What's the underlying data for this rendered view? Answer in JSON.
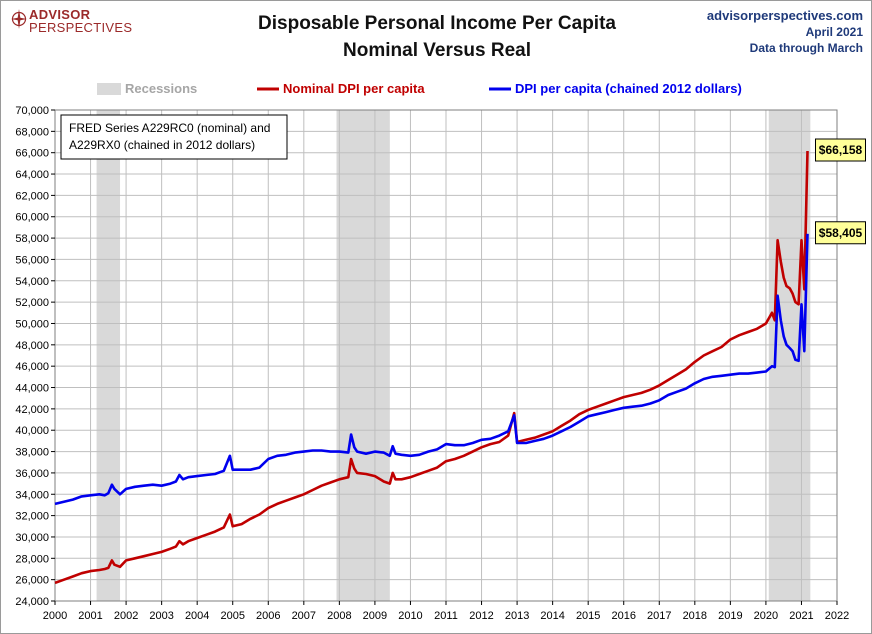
{
  "header": {
    "logo_line1": "ADVISOR",
    "logo_line2": "PERSPECTIVES",
    "title_line1": "Disposable Personal Income Per Capita",
    "title_line2": "Nominal Versus Real",
    "source_site": "advisorperspectives.com",
    "source_date": "April 2021",
    "source_through": "Data through March"
  },
  "annotation": {
    "line1": "FRED Series A229RC0 (nominal) and",
    "line2": "A229RX0 (chained in 2012 dollars)"
  },
  "colors": {
    "nominal": "#c00000",
    "real": "#0000ee",
    "recession": "#d9d9d9",
    "grid": "#bfbfbf",
    "callout_fill": "#ffff99"
  },
  "chart_data": {
    "type": "line",
    "title": "Disposable Personal Income Per Capita Nominal Versus Real",
    "x_ticks": [
      "2000",
      "2001",
      "2002",
      "2003",
      "2004",
      "2005",
      "2006",
      "2007",
      "2008",
      "2009",
      "2010",
      "2011",
      "2012",
      "2013",
      "2014",
      "2015",
      "2016",
      "2017",
      "2018",
      "2019",
      "2020",
      "2021",
      "2022"
    ],
    "y_ticks": [
      "24,000",
      "26,000",
      "28,000",
      "30,000",
      "32,000",
      "34,000",
      "36,000",
      "38,000",
      "40,000",
      "42,000",
      "44,000",
      "46,000",
      "48,000",
      "50,000",
      "52,000",
      "54,000",
      "56,000",
      "58,000",
      "60,000",
      "62,000",
      "64,000",
      "66,000",
      "68,000",
      "70,000"
    ],
    "xlim": [
      2000,
      2022
    ],
    "ylim": [
      24000,
      70000
    ],
    "grid": true,
    "legend": {
      "position": "top",
      "recessions_label": "Recessions",
      "items": [
        "Nominal DPI per capita",
        "DPI per capita (chained 2012 dollars)"
      ]
    },
    "recessions": [
      [
        2001.17,
        2001.83
      ],
      [
        2007.92,
        2009.42
      ],
      [
        2020.08,
        2021.25
      ]
    ],
    "series": [
      {
        "name": "Nominal DPI per capita",
        "color": "#c00000",
        "points": [
          [
            2000.0,
            25700
          ],
          [
            2000.25,
            26000
          ],
          [
            2000.5,
            26300
          ],
          [
            2000.75,
            26600
          ],
          [
            2001.0,
            26800
          ],
          [
            2001.25,
            26900
          ],
          [
            2001.4,
            27000
          ],
          [
            2001.5,
            27100
          ],
          [
            2001.6,
            27800
          ],
          [
            2001.67,
            27400
          ],
          [
            2001.83,
            27200
          ],
          [
            2002.0,
            27800
          ],
          [
            2002.25,
            28000
          ],
          [
            2002.5,
            28200
          ],
          [
            2002.75,
            28400
          ],
          [
            2003.0,
            28600
          ],
          [
            2003.25,
            28900
          ],
          [
            2003.4,
            29100
          ],
          [
            2003.5,
            29600
          ],
          [
            2003.6,
            29300
          ],
          [
            2003.75,
            29600
          ],
          [
            2004.0,
            29900
          ],
          [
            2004.25,
            30200
          ],
          [
            2004.5,
            30500
          ],
          [
            2004.75,
            30900
          ],
          [
            2004.92,
            32100
          ],
          [
            2005.0,
            31000
          ],
          [
            2005.25,
            31200
          ],
          [
            2005.5,
            31700
          ],
          [
            2005.75,
            32100
          ],
          [
            2006.0,
            32700
          ],
          [
            2006.25,
            33100
          ],
          [
            2006.5,
            33400
          ],
          [
            2006.75,
            33700
          ],
          [
            2007.0,
            34000
          ],
          [
            2007.25,
            34400
          ],
          [
            2007.5,
            34800
          ],
          [
            2007.75,
            35100
          ],
          [
            2008.0,
            35400
          ],
          [
            2008.25,
            35600
          ],
          [
            2008.33,
            37300
          ],
          [
            2008.42,
            36400
          ],
          [
            2008.5,
            36000
          ],
          [
            2008.75,
            35900
          ],
          [
            2009.0,
            35700
          ],
          [
            2009.25,
            35200
          ],
          [
            2009.42,
            35000
          ],
          [
            2009.5,
            36000
          ],
          [
            2009.58,
            35400
          ],
          [
            2009.75,
            35400
          ],
          [
            2010.0,
            35600
          ],
          [
            2010.25,
            35900
          ],
          [
            2010.5,
            36200
          ],
          [
            2010.75,
            36500
          ],
          [
            2011.0,
            37100
          ],
          [
            2011.25,
            37300
          ],
          [
            2011.5,
            37600
          ],
          [
            2011.75,
            38000
          ],
          [
            2012.0,
            38400
          ],
          [
            2012.25,
            38700
          ],
          [
            2012.5,
            38900
          ],
          [
            2012.75,
            39500
          ],
          [
            2012.92,
            41600
          ],
          [
            2013.0,
            38900
          ],
          [
            2013.25,
            39100
          ],
          [
            2013.5,
            39300
          ],
          [
            2013.75,
            39600
          ],
          [
            2014.0,
            39900
          ],
          [
            2014.25,
            40400
          ],
          [
            2014.5,
            40900
          ],
          [
            2014.75,
            41500
          ],
          [
            2015.0,
            41900
          ],
          [
            2015.25,
            42200
          ],
          [
            2015.5,
            42500
          ],
          [
            2015.75,
            42800
          ],
          [
            2016.0,
            43100
          ],
          [
            2016.25,
            43300
          ],
          [
            2016.5,
            43500
          ],
          [
            2016.75,
            43800
          ],
          [
            2017.0,
            44200
          ],
          [
            2017.25,
            44700
          ],
          [
            2017.5,
            45200
          ],
          [
            2017.75,
            45700
          ],
          [
            2018.0,
            46400
          ],
          [
            2018.25,
            47000
          ],
          [
            2018.5,
            47400
          ],
          [
            2018.75,
            47800
          ],
          [
            2019.0,
            48500
          ],
          [
            2019.25,
            48900
          ],
          [
            2019.5,
            49200
          ],
          [
            2019.75,
            49500
          ],
          [
            2020.0,
            50000
          ],
          [
            2020.17,
            51000
          ],
          [
            2020.25,
            50300
          ],
          [
            2020.33,
            57800
          ],
          [
            2020.42,
            55800
          ],
          [
            2020.5,
            54300
          ],
          [
            2020.58,
            53500
          ],
          [
            2020.67,
            53300
          ],
          [
            2020.75,
            52800
          ],
          [
            2020.83,
            52000
          ],
          [
            2020.92,
            51800
          ],
          [
            2021.0,
            57800
          ],
          [
            2021.08,
            53200
          ],
          [
            2021.17,
            66158
          ]
        ]
      },
      {
        "name": "DPI per capita (chained 2012 dollars)",
        "color": "#0000ee",
        "points": [
          [
            2000.0,
            33100
          ],
          [
            2000.25,
            33300
          ],
          [
            2000.5,
            33500
          ],
          [
            2000.75,
            33800
          ],
          [
            2001.0,
            33900
          ],
          [
            2001.25,
            34000
          ],
          [
            2001.4,
            33900
          ],
          [
            2001.5,
            34100
          ],
          [
            2001.6,
            34900
          ],
          [
            2001.67,
            34500
          ],
          [
            2001.83,
            34000
          ],
          [
            2002.0,
            34500
          ],
          [
            2002.25,
            34700
          ],
          [
            2002.5,
            34800
          ],
          [
            2002.75,
            34900
          ],
          [
            2003.0,
            34800
          ],
          [
            2003.25,
            35000
          ],
          [
            2003.4,
            35200
          ],
          [
            2003.5,
            35800
          ],
          [
            2003.6,
            35400
          ],
          [
            2003.75,
            35600
          ],
          [
            2004.0,
            35700
          ],
          [
            2004.25,
            35800
          ],
          [
            2004.5,
            35900
          ],
          [
            2004.75,
            36200
          ],
          [
            2004.92,
            37600
          ],
          [
            2005.0,
            36300
          ],
          [
            2005.25,
            36300
          ],
          [
            2005.5,
            36300
          ],
          [
            2005.75,
            36500
          ],
          [
            2006.0,
            37300
          ],
          [
            2006.25,
            37600
          ],
          [
            2006.5,
            37700
          ],
          [
            2006.75,
            37900
          ],
          [
            2007.0,
            38000
          ],
          [
            2007.25,
            38100
          ],
          [
            2007.5,
            38100
          ],
          [
            2007.75,
            38000
          ],
          [
            2008.0,
            38000
          ],
          [
            2008.25,
            37900
          ],
          [
            2008.33,
            39600
          ],
          [
            2008.42,
            38400
          ],
          [
            2008.5,
            38000
          ],
          [
            2008.75,
            37800
          ],
          [
            2009.0,
            38000
          ],
          [
            2009.25,
            37900
          ],
          [
            2009.42,
            37600
          ],
          [
            2009.5,
            38500
          ],
          [
            2009.58,
            37800
          ],
          [
            2009.75,
            37700
          ],
          [
            2010.0,
            37600
          ],
          [
            2010.25,
            37700
          ],
          [
            2010.5,
            38000
          ],
          [
            2010.75,
            38200
          ],
          [
            2011.0,
            38700
          ],
          [
            2011.25,
            38600
          ],
          [
            2011.5,
            38600
          ],
          [
            2011.75,
            38800
          ],
          [
            2012.0,
            39100
          ],
          [
            2012.25,
            39200
          ],
          [
            2012.5,
            39500
          ],
          [
            2012.75,
            39900
          ],
          [
            2012.92,
            41400
          ],
          [
            2013.0,
            38800
          ],
          [
            2013.25,
            38800
          ],
          [
            2013.5,
            39000
          ],
          [
            2013.75,
            39200
          ],
          [
            2014.0,
            39500
          ],
          [
            2014.25,
            39900
          ],
          [
            2014.5,
            40300
          ],
          [
            2014.75,
            40800
          ],
          [
            2015.0,
            41300
          ],
          [
            2015.25,
            41500
          ],
          [
            2015.5,
            41700
          ],
          [
            2015.75,
            41900
          ],
          [
            2016.0,
            42100
          ],
          [
            2016.25,
            42200
          ],
          [
            2016.5,
            42300
          ],
          [
            2016.75,
            42500
          ],
          [
            2017.0,
            42800
          ],
          [
            2017.25,
            43300
          ],
          [
            2017.5,
            43600
          ],
          [
            2017.75,
            43900
          ],
          [
            2018.0,
            44400
          ],
          [
            2018.25,
            44800
          ],
          [
            2018.5,
            45000
          ],
          [
            2018.75,
            45100
          ],
          [
            2019.0,
            45200
          ],
          [
            2019.25,
            45300
          ],
          [
            2019.5,
            45300
          ],
          [
            2019.75,
            45400
          ],
          [
            2020.0,
            45500
          ],
          [
            2020.17,
            46000
          ],
          [
            2020.25,
            45900
          ],
          [
            2020.33,
            52600
          ],
          [
            2020.42,
            50300
          ],
          [
            2020.5,
            48800
          ],
          [
            2020.58,
            48000
          ],
          [
            2020.67,
            47700
          ],
          [
            2020.75,
            47400
          ],
          [
            2020.83,
            46600
          ],
          [
            2020.92,
            46500
          ],
          [
            2021.0,
            51800
          ],
          [
            2021.08,
            47400
          ],
          [
            2021.17,
            58405
          ]
        ]
      }
    ],
    "callouts": [
      {
        "label": "$66,158",
        "x": 2021.17,
        "y": 66158,
        "series": "Nominal DPI per capita"
      },
      {
        "label": "$58,405",
        "x": 2021.17,
        "y": 58405,
        "series": "DPI per capita (chained 2012 dollars)"
      }
    ]
  }
}
